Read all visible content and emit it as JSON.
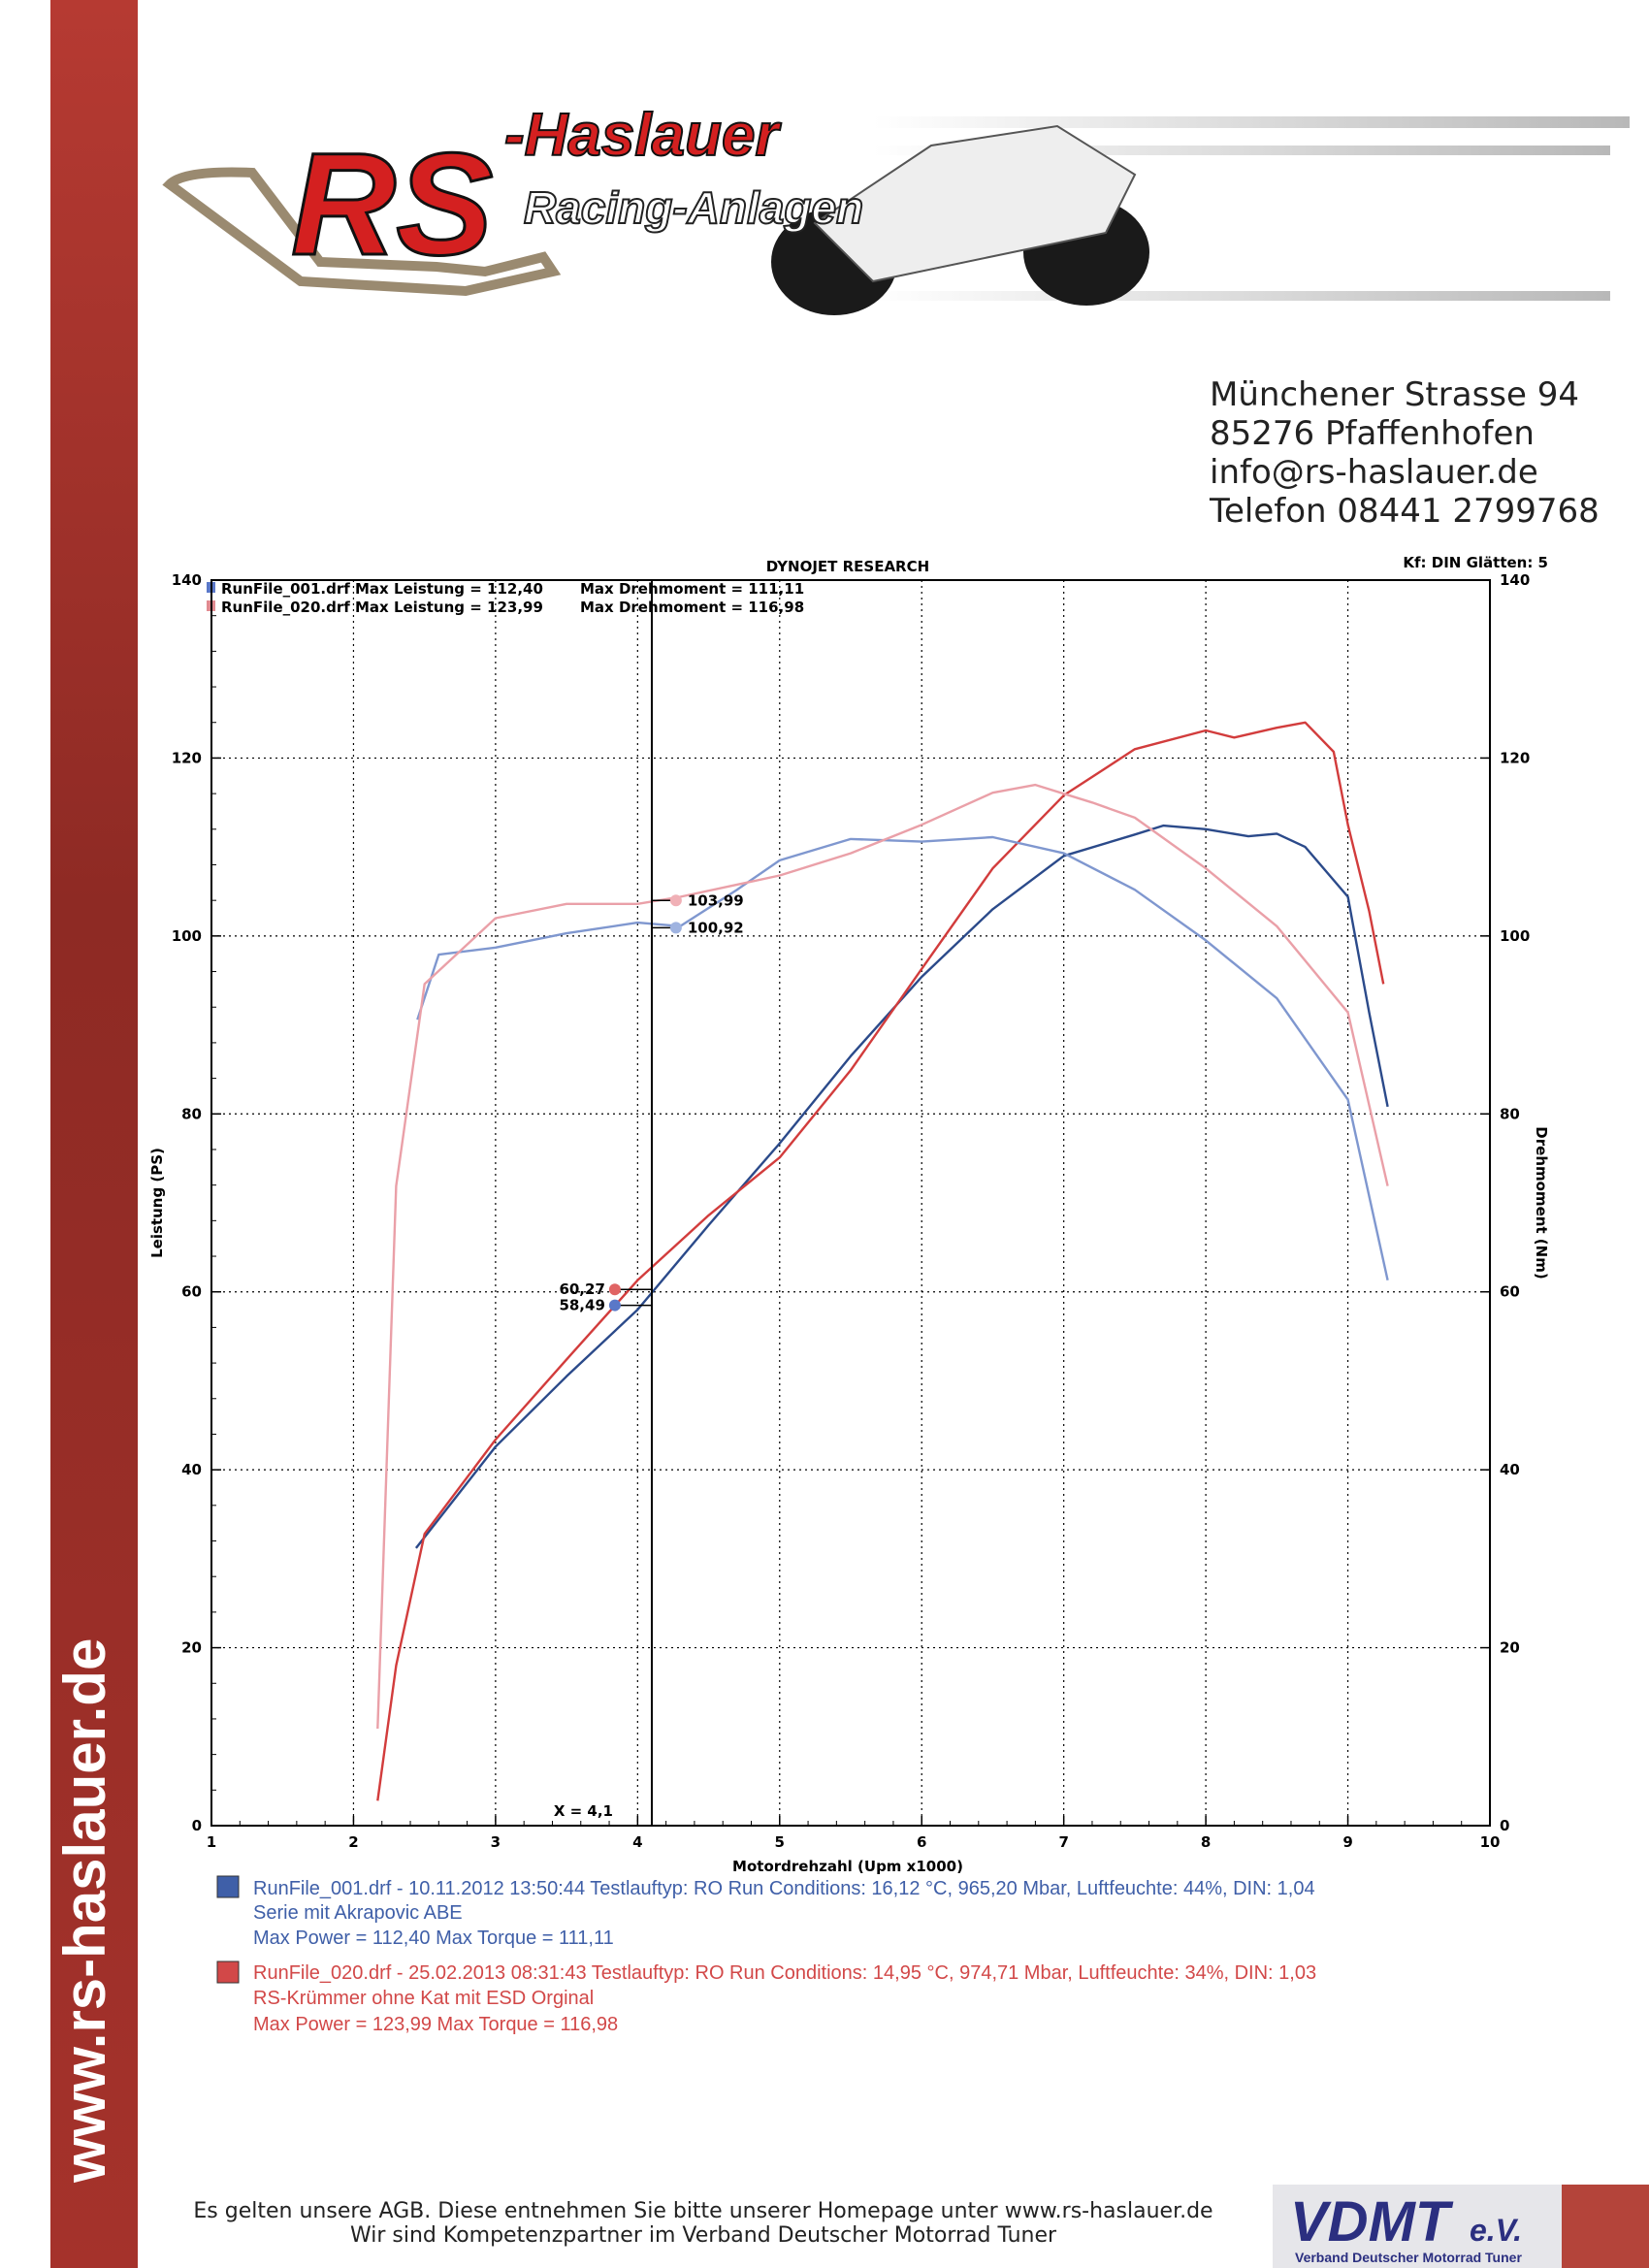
{
  "header": {
    "logo_main": "RS",
    "logo_name": "-Haslauer",
    "tagline": "Racing-Anlagen",
    "website": "www.rs-haslauer.de"
  },
  "address": [
    "Münchener Strasse 94",
    "85276 Pfaffenhofen",
    "info@rs-haslauer.de",
    "Telefon 08441 2799768"
  ],
  "chart_data": {
    "type": "line",
    "title": "DYNOJET RESEARCH",
    "subtitle": "Kf: DIN  Glätten: 5",
    "xlabel": "Motordrehzahl (Upm x1000)",
    "ylabel": "Leistung (PS)",
    "y2label": "Drehmoment (Nm)",
    "xlim": [
      1,
      10
    ],
    "xticks": [
      1,
      2,
      3,
      4,
      5,
      6,
      7,
      8,
      9,
      10
    ],
    "ylim": [
      0,
      140
    ],
    "yticks": [
      0,
      20,
      40,
      60,
      80,
      100,
      120,
      140
    ],
    "y2lim": [
      0,
      140
    ],
    "y2ticks": [
      0,
      20,
      40,
      60,
      80,
      100,
      120,
      140
    ],
    "grid": true,
    "legend": [
      {
        "file_power": "RunFile_001.drf Max Leistung = 112,40",
        "torque": "Max Drehmoment = 111,11",
        "color": "#5a78c8"
      },
      {
        "file_power": "RunFile_020.drf Max Leistung = 123,99",
        "torque": "Max Drehmoment = 116,98",
        "color": "#e08a90"
      }
    ],
    "series": [
      {
        "color": "#2b4a8a",
        "axis": "y",
        "x": [
          2.44,
          3,
          3.5,
          4,
          4.5,
          5,
          5.5,
          6,
          6.5,
          7,
          7.5,
          7.7,
          8,
          8.3,
          8.5,
          8.7,
          9,
          9.15,
          9.28
        ],
        "values": [
          31.2,
          42.6,
          50.5,
          58,
          67.5,
          76.7,
          86.5,
          95.4,
          103,
          109,
          111.4,
          112.4,
          112,
          111.2,
          111.5,
          110,
          104.4,
          91.4,
          80.8
        ]
      },
      {
        "color": "#d23c3c",
        "axis": "y",
        "x": [
          2.17,
          2.3,
          2.5,
          3,
          3.5,
          4,
          4.5,
          5,
          5.5,
          6,
          6.5,
          7,
          7.5,
          8,
          8.2,
          8.5,
          8.7,
          8.9,
          9,
          9.15,
          9.25
        ],
        "values": [
          2.8,
          18,
          32.8,
          43.4,
          52.4,
          61.3,
          68.6,
          75.1,
          84.9,
          96.3,
          107.6,
          115.8,
          121,
          123.1,
          122.3,
          123.4,
          123.99,
          120.7,
          112.5,
          102.8,
          94.6
        ]
      },
      {
        "color": "#7f97cf",
        "axis": "y2",
        "x": [
          2.45,
          2.6,
          3,
          3.5,
          4,
          4.3,
          4.7,
          5,
          5.5,
          6,
          6.5,
          7,
          7.5,
          8,
          8.5,
          9,
          9.28
        ],
        "values": [
          90.6,
          97.9,
          98.7,
          100.3,
          101.5,
          101.1,
          105.2,
          108.5,
          110.9,
          110.6,
          111.11,
          109.3,
          105.2,
          99.5,
          93,
          81.6,
          61.3
        ]
      },
      {
        "color": "#eaa0a8",
        "axis": "y2",
        "x": [
          2.17,
          2.3,
          2.5,
          3,
          3.5,
          4,
          4.3,
          5,
          5.5,
          6,
          6.5,
          6.8,
          7.2,
          7.5,
          8,
          8.5,
          9,
          9.28
        ],
        "values": [
          10.9,
          71.9,
          94.6,
          102,
          103.6,
          103.6,
          104.4,
          106.8,
          109.3,
          112.5,
          116.1,
          116.98,
          115,
          113.3,
          107.6,
          101.1,
          91.4,
          71.9
        ]
      }
    ],
    "cursor": {
      "x": 4.1,
      "label": "X = 4,1"
    },
    "annotations": [
      {
        "x": 3.84,
        "value": 60.27,
        "label": "60,27",
        "color": "#e06464",
        "axis": "y",
        "side": "left"
      },
      {
        "x": 3.84,
        "value": 58.49,
        "label": "58,49",
        "color": "#5a78c8",
        "axis": "y",
        "side": "left"
      },
      {
        "x": 4.27,
        "value": 103.99,
        "label": "103,99",
        "color": "#f0b0b6",
        "axis": "y2",
        "side": "right"
      },
      {
        "x": 4.27,
        "value": 100.92,
        "label": "100,92",
        "color": "#9fb3e0",
        "axis": "y2",
        "side": "right"
      }
    ]
  },
  "runs": [
    {
      "color": "#3f5fa8",
      "lines": [
        "RunFile_001.drf - 10.11.2012 13:50:44  Testlauftyp: RO  Run Conditions: 16,12 °C, 965,20 Mbar,  Luftfeuchte: 44%, DIN: 1,04",
        "Serie mit Akrapovic ABE",
        "Max Power = 112,40  Max Torque = 111,11"
      ]
    },
    {
      "color": "#d24848",
      "lines": [
        "RunFile_020.drf - 25.02.2013 08:31:43  Testlauftyp: RO  Run Conditions: 14,95 °C, 974,71 Mbar,  Luftfeuchte: 34%, DIN: 1,03",
        "RS-Krümmer ohne Kat mit ESD Orginal",
        "Max Power = 123,99  Max Torque = 116,98"
      ]
    }
  ],
  "footer": {
    "lines": [
      "Es gelten unsere AGB. Diese entnehmen Sie bitte unserer Homepage unter www.rs-haslauer.de",
      "Wir sind Kompetenzpartner im Verband Deutscher Motorrad Tuner"
    ],
    "badge": "VDMT",
    "badge_suffix": "e.V.",
    "badge_caption": "Verband Deutscher Motorrad Tuner"
  }
}
